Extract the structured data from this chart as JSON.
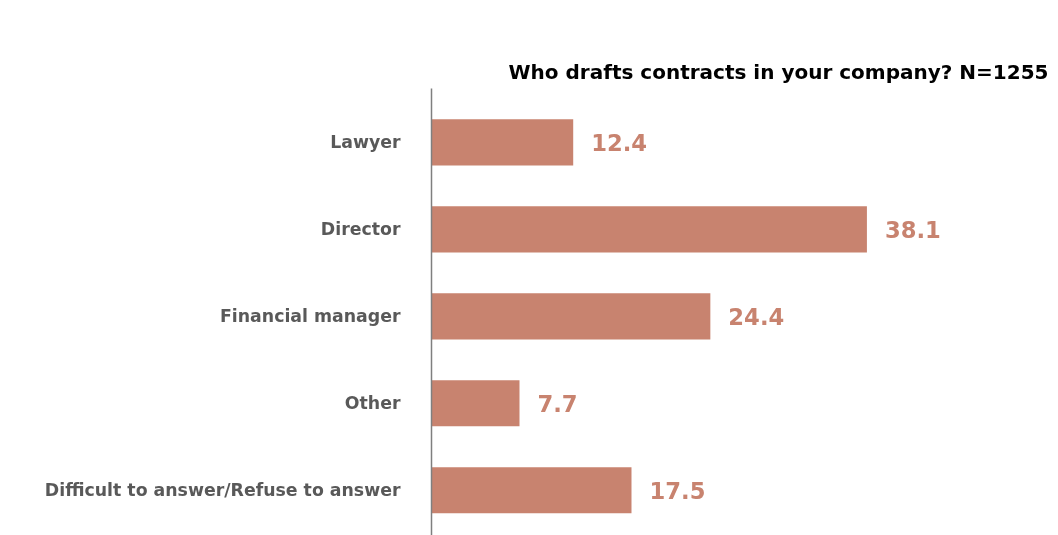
{
  "chart_data": {
    "type": "bar",
    "orientation": "horizontal",
    "title": "Who drafts contracts in your company? N=1255",
    "categories": [
      "Lawyer",
      "Director",
      "Financial manager",
      "Other",
      "Difficult to answer/Refuse to answer"
    ],
    "values": [
      12.4,
      38.1,
      24.4,
      7.7,
      17.5
    ],
    "color": "#c8836f",
    "data_labels": true
  }
}
